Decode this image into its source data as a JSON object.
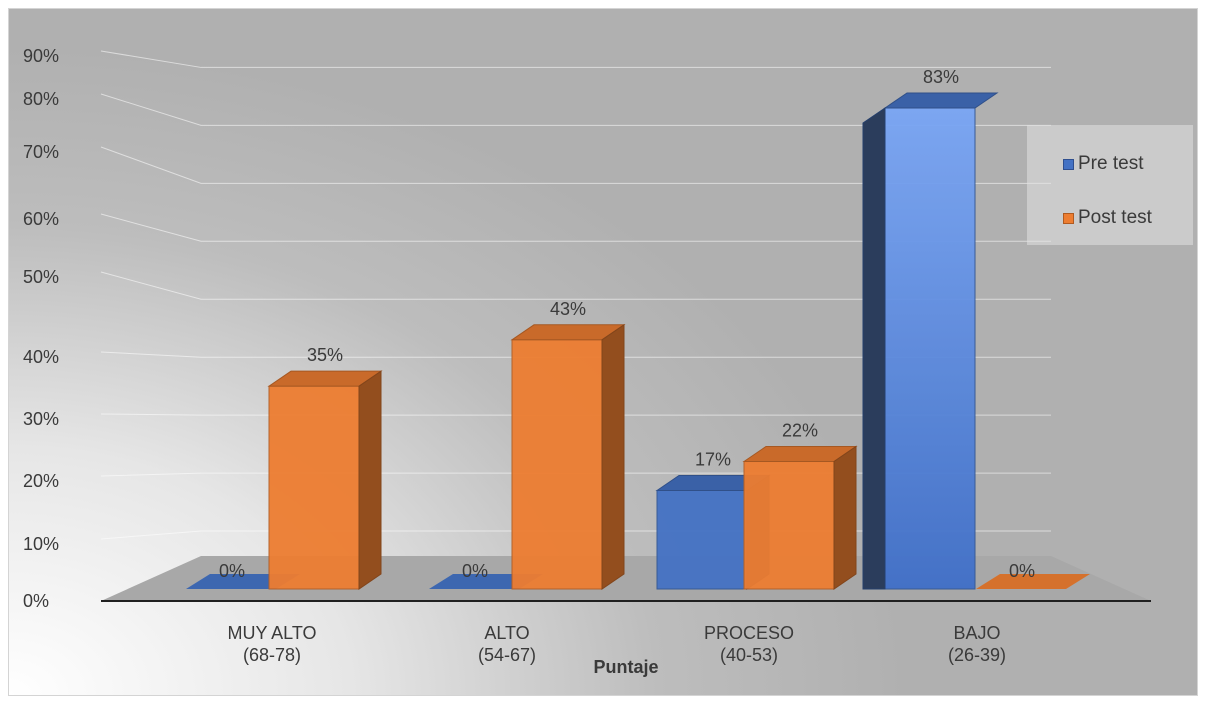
{
  "chart_data": {
    "type": "bar",
    "title": "",
    "xlabel": "Puntaje",
    "ylabel": "",
    "ylim": [
      0,
      90
    ],
    "yticks": [
      "0%",
      "10%",
      "20%",
      "30%",
      "40%",
      "50%",
      "60%",
      "70%",
      "80%",
      "90%"
    ],
    "categories": [
      {
        "line1": "MUY ALTO",
        "line2": "(68-78)"
      },
      {
        "line1": "ALTO",
        "line2": "(54-67)"
      },
      {
        "line1": "PROCESO",
        "line2": "(40-53)"
      },
      {
        "line1": "BAJO",
        "line2": "(26-39)"
      }
    ],
    "series": [
      {
        "name": "Pre test",
        "values": [
          0,
          0,
          17,
          83
        ],
        "labels": [
          "0%",
          "0%",
          "17%",
          "83%"
        ],
        "color": "#4472C4"
      },
      {
        "name": "Post test",
        "values": [
          35,
          43,
          22,
          0
        ],
        "labels": [
          "35%",
          "43%",
          "22%",
          "0%"
        ],
        "color": "#ED7D31"
      }
    ],
    "grid": true,
    "legend_position": "right",
    "style": "3d-clustered-column"
  }
}
